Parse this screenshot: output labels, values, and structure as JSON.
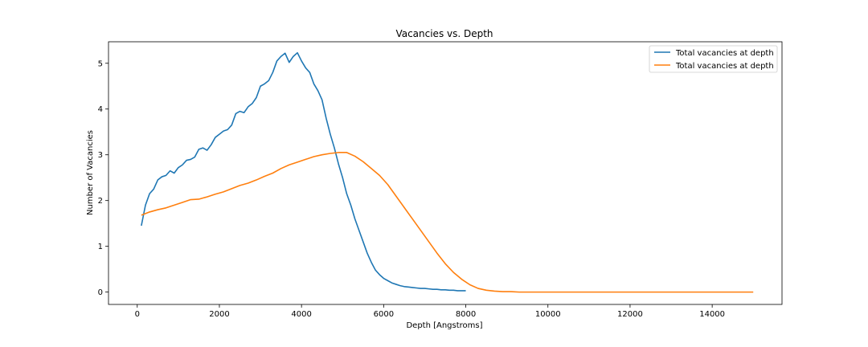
{
  "chart_data": {
    "type": "line",
    "title": "Vacancies vs. Depth",
    "xlabel": "Depth [Angstroms]",
    "ylabel": "Number of Vacancies",
    "xlim": [
      -700,
      15700
    ],
    "ylim": [
      -0.27,
      5.47
    ],
    "xticks": [
      0,
      2000,
      4000,
      6000,
      8000,
      10000,
      12000,
      14000
    ],
    "yticks": [
      0,
      1,
      2,
      3,
      4,
      5
    ],
    "grid": false,
    "legend_position": "top-right",
    "series": [
      {
        "name": "Total vacancies at depth",
        "color": "#1f77b4",
        "x": [
          100,
          200,
          300,
          400,
          500,
          600,
          700,
          800,
          900,
          1000,
          1100,
          1200,
          1300,
          1400,
          1500,
          1600,
          1700,
          1800,
          1900,
          2000,
          2100,
          2200,
          2300,
          2400,
          2500,
          2600,
          2700,
          2800,
          2900,
          3000,
          3100,
          3200,
          3300,
          3400,
          3500,
          3600,
          3700,
          3800,
          3900,
          4000,
          4100,
          4200,
          4300,
          4400,
          4500,
          4600,
          4700,
          4800,
          4900,
          5000,
          5100,
          5200,
          5300,
          5400,
          5500,
          5600,
          5700,
          5800,
          5900,
          6000,
          6100,
          6200,
          6300,
          6400,
          6500,
          6600,
          6700,
          6800,
          6900,
          7000,
          7100,
          7200,
          7300,
          7400,
          7500,
          7600,
          7700,
          7800,
          7900,
          8000
        ],
        "y": [
          1.45,
          1.9,
          2.15,
          2.25,
          2.45,
          2.52,
          2.55,
          2.65,
          2.6,
          2.72,
          2.78,
          2.88,
          2.9,
          2.95,
          3.12,
          3.15,
          3.1,
          3.22,
          3.38,
          3.45,
          3.52,
          3.55,
          3.65,
          3.9,
          3.95,
          3.92,
          4.05,
          4.12,
          4.25,
          4.5,
          4.55,
          4.62,
          4.8,
          5.05,
          5.15,
          5.22,
          5.02,
          5.15,
          5.23,
          5.05,
          4.9,
          4.8,
          4.55,
          4.4,
          4.2,
          3.8,
          3.45,
          3.15,
          2.8,
          2.5,
          2.15,
          1.9,
          1.6,
          1.35,
          1.1,
          0.85,
          0.65,
          0.48,
          0.38,
          0.3,
          0.25,
          0.2,
          0.17,
          0.14,
          0.12,
          0.11,
          0.1,
          0.09,
          0.08,
          0.08,
          0.07,
          0.06,
          0.06,
          0.05,
          0.05,
          0.04,
          0.04,
          0.03,
          0.03,
          0.03
        ]
      },
      {
        "name": "Total vacancies at depth",
        "color": "#ff7f0e",
        "x": [
          100,
          300,
          500,
          700,
          900,
          1100,
          1300,
          1500,
          1700,
          1900,
          2100,
          2300,
          2500,
          2700,
          2900,
          3100,
          3300,
          3500,
          3700,
          3900,
          4100,
          4300,
          4500,
          4700,
          4900,
          5100,
          5300,
          5500,
          5700,
          5900,
          6100,
          6300,
          6500,
          6700,
          6900,
          7100,
          7300,
          7500,
          7700,
          7900,
          8100,
          8300,
          8500,
          8700,
          8900,
          9100,
          9300,
          9500,
          10000,
          11000,
          12000,
          13000,
          14000,
          15000
        ],
        "y": [
          1.68,
          1.75,
          1.8,
          1.84,
          1.9,
          1.96,
          2.02,
          2.03,
          2.08,
          2.14,
          2.19,
          2.26,
          2.33,
          2.38,
          2.45,
          2.53,
          2.6,
          2.7,
          2.78,
          2.84,
          2.9,
          2.96,
          3.0,
          3.03,
          3.05,
          3.05,
          2.97,
          2.85,
          2.7,
          2.55,
          2.35,
          2.1,
          1.85,
          1.6,
          1.35,
          1.1,
          0.85,
          0.62,
          0.43,
          0.28,
          0.16,
          0.08,
          0.04,
          0.02,
          0.01,
          0.01,
          0.0,
          0.0,
          0.0,
          0.0,
          0.0,
          0.0,
          0.0,
          0.0
        ]
      }
    ]
  }
}
